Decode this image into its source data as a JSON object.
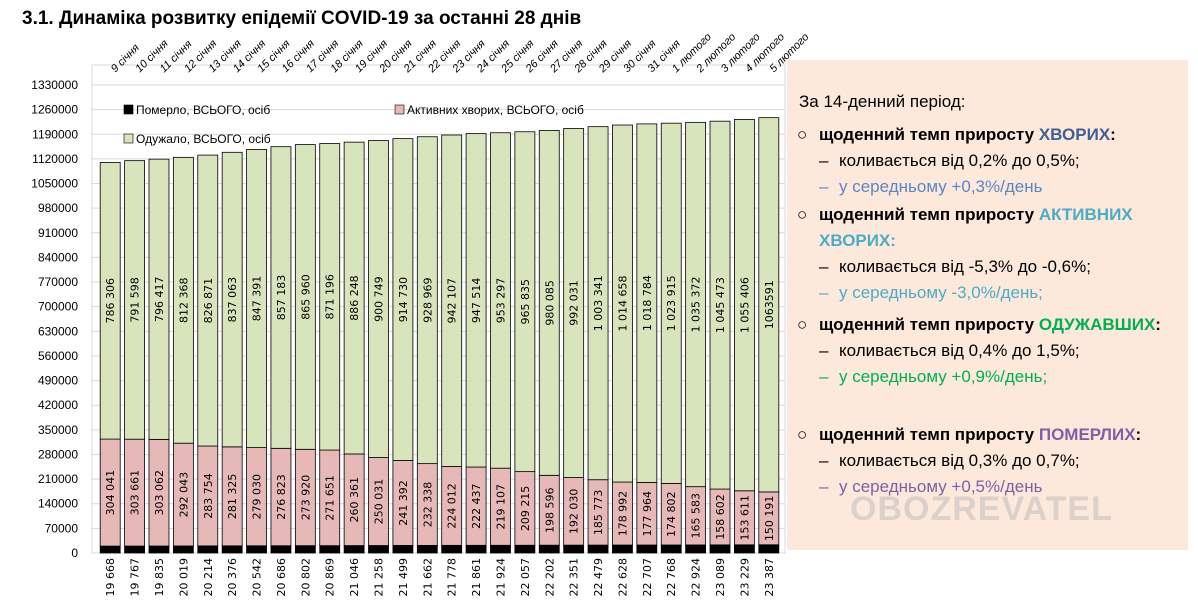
{
  "title": "3.1.  Динаміка розвитку епідемії COVID-19 за останні 28 днів",
  "chart_data": {
    "type": "bar",
    "stacked": true,
    "categories": [
      "9 січня",
      "10 січня",
      "11 січня",
      "12 січня",
      "13 січня",
      "14 січня",
      "15 січня",
      "16 січня",
      "17 січня",
      "18 січня",
      "19 січня",
      "20 січня",
      "21 січня",
      "22 січня",
      "23 січня",
      "24 січня",
      "25 січня",
      "26 січня",
      "27 січня",
      "28 січня",
      "29 січня",
      "30 січня",
      "31 січня",
      "1 лютого",
      "2 лютого",
      "3 лютого",
      "4 лютого",
      "5 лютого"
    ],
    "series": [
      {
        "name": "Померло, ВСЬОГО, осіб",
        "color": "#000000",
        "values": [
          19668,
          19767,
          19835,
          20019,
          20214,
          20376,
          20542,
          20686,
          20802,
          20869,
          21046,
          21258,
          21499,
          21662,
          21778,
          21861,
          21924,
          22057,
          22202,
          22351,
          22479,
          22628,
          22707,
          22768,
          22924,
          23089,
          23229,
          23387
        ],
        "labels": [
          "19 668",
          "19 767",
          "19 835",
          "20 019",
          "20 214",
          "20 376",
          "20 542",
          "20 686",
          "20 802",
          "20 869",
          "21 046",
          "21 258",
          "21 499",
          "21 662",
          "21 778",
          "21 861",
          "21 924",
          "22 057",
          "22 202",
          "22 351",
          "22 479",
          "22 628",
          "22 707",
          "22 768",
          "22 924",
          "23 089",
          "23 229",
          "23 387"
        ]
      },
      {
        "name": "Активних хворих, ВСЬОГО, осіб",
        "color": "#e6b9b8",
        "values": [
          304041,
          303661,
          303062,
          292043,
          283754,
          281325,
          279030,
          276823,
          273920,
          271651,
          260361,
          250031,
          241392,
          232338,
          224012,
          222437,
          219107,
          209215,
          198596,
          192030,
          185773,
          178992,
          177964,
          174802,
          165583,
          158602,
          153611,
          150191
        ],
        "labels": [
          "304 041",
          "303 661",
          "303 062",
          "292 043",
          "283 754",
          "281 325",
          "279 030",
          "276 823",
          "273 920",
          "271 651",
          "260 361",
          "250 031",
          "241 392",
          "232 338",
          "224 012",
          "222 437",
          "219 107",
          "209 215",
          "198 596",
          "192 030",
          "185 773",
          "178 992",
          "177 964",
          "174 802",
          "165 583",
          "158 602",
          "153 611",
          "150 191"
        ]
      },
      {
        "name": "Одужало, ВСЬОГО, осіб",
        "color": "#d8e4bc",
        "values": [
          786306,
          791598,
          796417,
          812368,
          826871,
          837063,
          847391,
          857183,
          865960,
          871196,
          886248,
          900749,
          914730,
          928969,
          942107,
          947514,
          953297,
          965835,
          980085,
          992031,
          1003341,
          1014658,
          1018784,
          1023915,
          1035372,
          1045473,
          1055406,
          1063591
        ],
        "labels": [
          "786 306",
          "791 598",
          "796 417",
          "812 368",
          "826 871",
          "837 063",
          "847 391",
          "857 183",
          "865 960",
          "871 196",
          "886 248",
          "900 749",
          "914 730",
          "928 969",
          "942 107",
          "947 514",
          "953 297",
          "965 835",
          "980 085",
          "992 031",
          "1 003 341",
          "1 014 658",
          "1 018 784",
          "1 023 915",
          "1 035 372",
          "1 045 473",
          "1 055 406",
          "1063591"
        ]
      }
    ],
    "ylim": [
      0,
      1330000
    ],
    "ytick_step": 70000,
    "grid": true,
    "legend": "inside-top"
  },
  "panel": {
    "intro": "За 14-денний період:",
    "bullet": "○",
    "dash": "–",
    "blocks": [
      {
        "head": "щоденний темп приросту ",
        "key": "ХВОРИХ",
        "tail": ":",
        "key_color": "#3f5f95",
        "range": "коливається від 0,2% до 0,5%;",
        "avg": "у середньому +0,3%/день",
        "avg_color": "#5b86c6"
      },
      {
        "head": "щоденний темп приросту ",
        "key": "АКТИВНИХ ХВОРИХ:",
        "tail": "",
        "key_color": "#4bacc6",
        "range": "коливається від -5,3% до -0,6%;",
        "avg": "у середньому -3,0%/день;",
        "avg_color": "#4bacc6"
      },
      {
        "head": "щоденний темп приросту ",
        "key": "ОДУЖАВШИХ",
        "tail": ":",
        "key_color": "#00b050",
        "range": "коливається від 0,4% до 1,5%;",
        "avg": "у середньому +0,9%/день;",
        "avg_color": "#00b050"
      },
      {
        "head": "щоденний темп приросту ",
        "key": "ПОМЕРЛИХ",
        "tail": ":",
        "key_color": "#7f5fa7",
        "range": "коливається від 0,3% до 0,7%;",
        "avg": "у середньому +0,5%/день",
        "avg_color": "#7f5fa7"
      }
    ]
  },
  "watermark": "OBOZREVATEL"
}
